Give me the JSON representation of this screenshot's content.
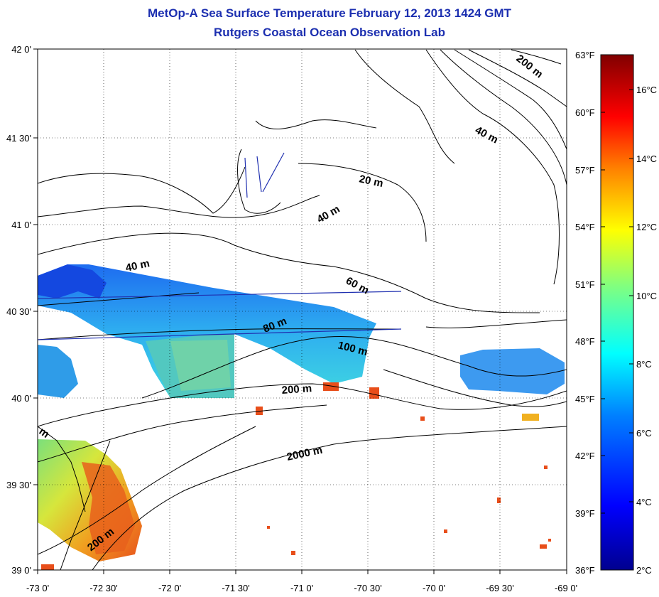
{
  "title": {
    "line1": "MetOp-A Sea Surface Temperature February 12, 2013 1424 GMT",
    "line2": "Rutgers Coastal Ocean Observation Lab"
  },
  "lat_ticks": [
    "42 0'",
    "41 30'",
    "41 0'",
    "40 30'",
    "40 0'",
    "39 30'",
    "39 0'"
  ],
  "lon_ticks": [
    "-73 0'",
    "-72 30'",
    "-72 0'",
    "-71 30'",
    "-71 0'",
    "-70 30'",
    "-70 0'",
    "-69 30'",
    "-69 0'"
  ],
  "colorbar": {
    "fahrenheit_labels": [
      "63°F",
      "60°F",
      "57°F",
      "54°F",
      "51°F",
      "48°F",
      "45°F",
      "42°F",
      "39°F",
      "36°F"
    ],
    "celsius_labels": [
      "16°C",
      "14°C",
      "12°C",
      "10°C",
      "8°C",
      "6°C",
      "4°C",
      "2°C"
    ],
    "colors": [
      "#00008f",
      "#0000ff",
      "#0080ff",
      "#00ffff",
      "#80ff80",
      "#ffff00",
      "#ff8000",
      "#ff0000",
      "#800000"
    ]
  },
  "contour_labels": [
    "200 m",
    "40 m",
    "20 m",
    "40 m",
    "40 m",
    "60 m",
    "80 m",
    "100 m",
    "200 m",
    "2000 m",
    "200 m",
    "m"
  ],
  "colors": {
    "title": "#1c2fb0",
    "coast": "#000000",
    "cold_sst": "#1450e6",
    "mid_sst": "#3cd2dc",
    "warm_sst": "#e6641e"
  }
}
